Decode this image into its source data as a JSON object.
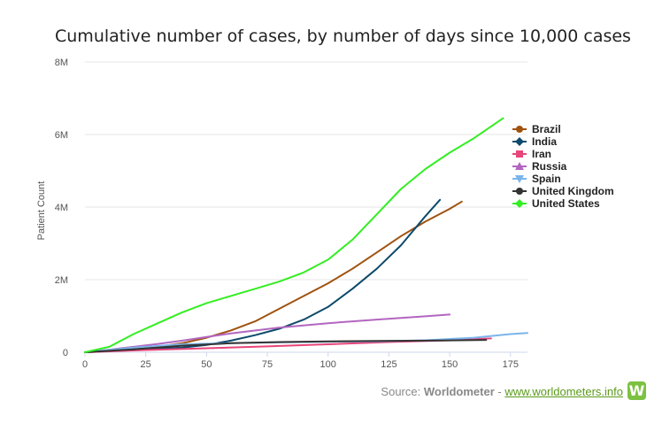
{
  "chart_data": {
    "type": "line",
    "title": "Cumulative number of cases, by number of days since 10,000 cases",
    "xlabel": "",
    "ylabel": "Patient Count",
    "xlim": [
      0,
      182
    ],
    "ylim": [
      0,
      8000000
    ],
    "x_ticks": [
      0,
      25,
      50,
      75,
      100,
      125,
      150,
      175
    ],
    "y_ticks": [
      0,
      2000000,
      4000000,
      6000000,
      8000000
    ],
    "x_tick_labels": [
      "0",
      "25",
      "50",
      "75",
      "100",
      "125",
      "150",
      "175"
    ],
    "y_tick_labels": [
      "0",
      "2M",
      "4M",
      "6M",
      "8M"
    ],
    "grid": "horizontal",
    "legend_position": "right",
    "series": [
      {
        "name": "Brazil",
        "color": "#a0520f",
        "marker": "circle",
        "x": [
          0,
          10,
          20,
          30,
          40,
          50,
          60,
          70,
          80,
          90,
          100,
          110,
          120,
          130,
          140,
          150,
          155
        ],
        "y": [
          0,
          40000,
          100000,
          150000,
          250000,
          400000,
          600000,
          850000,
          1200000,
          1550000,
          1900000,
          2300000,
          2750000,
          3200000,
          3600000,
          3950000,
          4150000
        ]
      },
      {
        "name": "India",
        "color": "#0d4a6b",
        "marker": "diamond",
        "x": [
          0,
          20,
          40,
          50,
          60,
          70,
          80,
          90,
          100,
          110,
          120,
          130,
          140,
          146
        ],
        "y": [
          0,
          60000,
          130000,
          200000,
          320000,
          470000,
          650000,
          900000,
          1250000,
          1750000,
          2300000,
          2950000,
          3750000,
          4200000
        ]
      },
      {
        "name": "Iran",
        "color": "#e8457a",
        "marker": "square",
        "x": [
          0,
          25,
          50,
          75,
          100,
          125,
          150,
          167
        ],
        "y": [
          0,
          60000,
          110000,
          160000,
          220000,
          280000,
          330000,
          380000
        ]
      },
      {
        "name": "Russia",
        "color": "#b266c0",
        "marker": "triangle",
        "x": [
          0,
          10,
          20,
          30,
          40,
          50,
          60,
          80,
          100,
          120,
          140,
          150
        ],
        "y": [
          0,
          70000,
          150000,
          230000,
          320000,
          420000,
          520000,
          680000,
          800000,
          900000,
          990000,
          1040000
        ]
      },
      {
        "name": "Spain",
        "color": "#7ab5ea",
        "marker": "triangle-down",
        "x": [
          0,
          20,
          40,
          60,
          80,
          100,
          120,
          140,
          160,
          175,
          182
        ],
        "y": [
          0,
          130000,
          220000,
          250000,
          270000,
          290000,
          300000,
          330000,
          400000,
          500000,
          530000
        ]
      },
      {
        "name": "United Kingdom",
        "color": "#333333",
        "marker": "circle",
        "x": [
          0,
          20,
          40,
          60,
          80,
          100,
          120,
          140,
          165
        ],
        "y": [
          0,
          80000,
          180000,
          250000,
          280000,
          300000,
          310000,
          320000,
          340000
        ]
      },
      {
        "name": "United States",
        "color": "#33ee22",
        "marker": "diamond",
        "x": [
          0,
          10,
          20,
          30,
          40,
          50,
          60,
          70,
          80,
          90,
          100,
          110,
          120,
          130,
          140,
          150,
          160,
          172
        ],
        "y": [
          0,
          150000,
          500000,
          800000,
          1100000,
          1350000,
          1550000,
          1750000,
          1950000,
          2200000,
          2550000,
          3100000,
          3800000,
          4500000,
          5050000,
          5500000,
          5900000,
          6450000
        ]
      }
    ]
  },
  "source": {
    "prefix": "Source: ",
    "name": "Worldometer",
    "separator": " - ",
    "link": "www.worldometers.info",
    "logo": "W"
  }
}
